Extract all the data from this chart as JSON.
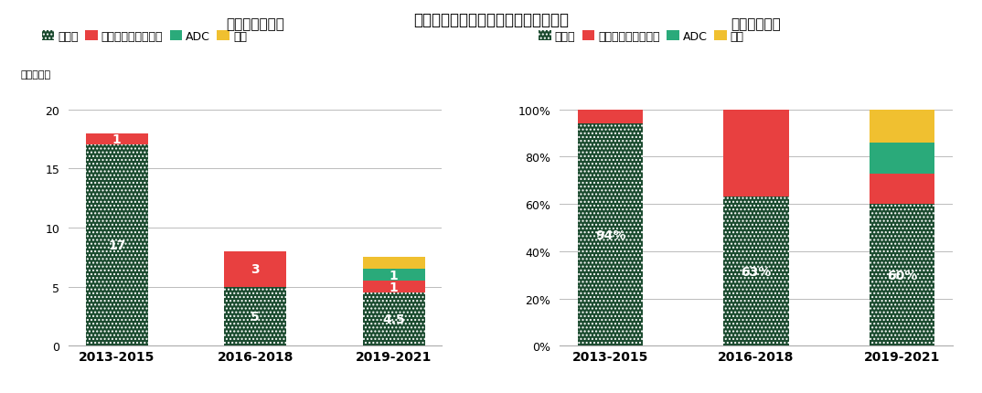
{
  "title": "図３　日本創出のモダリティ年次推移",
  "categories": [
    "2013-2015",
    "2016-2018",
    "2019-2021"
  ],
  "left_title": "承認数（日本）",
  "right_title": "比率（日本）",
  "left_ylabel": "（品目数）",
  "legend_labels": [
    "低分子",
    "モノクローナル抗体",
    "ADC",
    "核酸"
  ],
  "colors": {
    "低分子": "#1a4a2e",
    "モノクローナル抗体": "#e84040",
    "ADC": "#2aaa7a",
    "核酸": "#f0c030"
  },
  "left_data": {
    "低分子": [
      17,
      5,
      4.5
    ],
    "モノクローナル抗体": [
      1,
      3,
      1
    ],
    "ADC": [
      0,
      0,
      1
    ],
    "核酸": [
      0,
      0,
      1
    ]
  },
  "left_labels": {
    "低分子": [
      "17",
      "5",
      "4.5"
    ],
    "モノクローナル抗体": [
      "1",
      "3",
      "1"
    ],
    "ADC": [
      "",
      "",
      "1"
    ],
    "核酸": [
      "",
      "",
      ""
    ]
  },
  "right_data": {
    "低分子": [
      94,
      63,
      60
    ],
    "モノクローナル抗体": [
      6,
      37,
      13
    ],
    "ADC": [
      0,
      0,
      13
    ],
    "核酸": [
      0,
      0,
      14
    ]
  },
  "right_labels": {
    "低分子": [
      "94%",
      "63%",
      "60%"
    ],
    "モノクローナル抗体": [
      "",
      "",
      ""
    ],
    "ADC": [
      "",
      "",
      ""
    ],
    "核酸": [
      "",
      "",
      ""
    ]
  },
  "ylim_left": [
    0,
    20
  ],
  "yticks_left": [
    0,
    5,
    10,
    15,
    20
  ],
  "yticks_right": [
    0,
    20,
    40,
    60,
    80,
    100
  ],
  "bar_width": 0.45
}
